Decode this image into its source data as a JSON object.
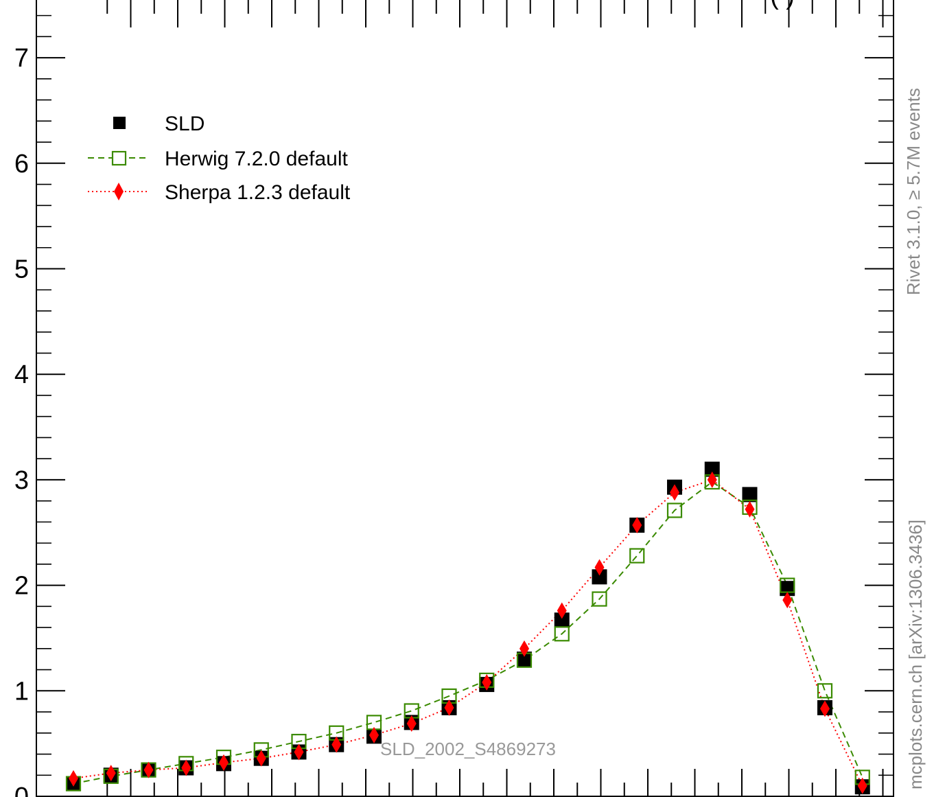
{
  "chart_data": {
    "type": "scatter",
    "title": "",
    "xlabel": "",
    "ylabel": "",
    "ylim": [
      0,
      7.4
    ],
    "yticks": [
      "0",
      "1",
      "2",
      "3",
      "4",
      "5",
      "6",
      "7"
    ],
    "x": [
      1,
      2,
      3,
      4,
      5,
      6,
      7,
      8,
      9,
      10,
      11,
      12,
      13,
      14,
      15,
      16,
      17,
      18,
      19,
      20,
      21,
      22
    ],
    "series": [
      {
        "name": "SLD",
        "marker": "filled-square",
        "line": "none",
        "color": "#000000",
        "values": [
          0.12,
          0.2,
          0.25,
          0.27,
          0.31,
          0.36,
          0.42,
          0.49,
          0.57,
          0.7,
          0.84,
          1.06,
          1.3,
          1.67,
          2.08,
          2.57,
          2.93,
          3.1,
          2.86,
          1.97,
          0.84,
          0.09
        ]
      },
      {
        "name": "Herwig 7.2.0 default",
        "marker": "open-square",
        "line": "dashed",
        "color": "#3a8a00",
        "values": [
          0.12,
          0.19,
          0.25,
          0.31,
          0.37,
          0.44,
          0.52,
          0.6,
          0.7,
          0.81,
          0.95,
          1.1,
          1.29,
          1.54,
          1.87,
          2.28,
          2.71,
          2.98,
          2.74,
          2.0,
          1.0,
          0.18
        ]
      },
      {
        "name": "Sherpa 1.2.3 default",
        "marker": "filled-diamond",
        "line": "dotted",
        "color": "#ff0000",
        "values": [
          0.17,
          0.22,
          0.25,
          0.27,
          0.32,
          0.36,
          0.42,
          0.49,
          0.58,
          0.69,
          0.84,
          1.08,
          1.4,
          1.76,
          2.17,
          2.57,
          2.88,
          3.0,
          2.72,
          1.86,
          0.83,
          0.1
        ]
      }
    ],
    "legend_position": "top-left",
    "annotations": {
      "watermark": "SLD_2002_S4869273",
      "side_top": "Rivet 3.1.0, ≥ 5.7M events",
      "side_bottom": "mcplots.cern.ch [arXiv:1306.3436]",
      "top_cut_text": "(            )"
    }
  }
}
